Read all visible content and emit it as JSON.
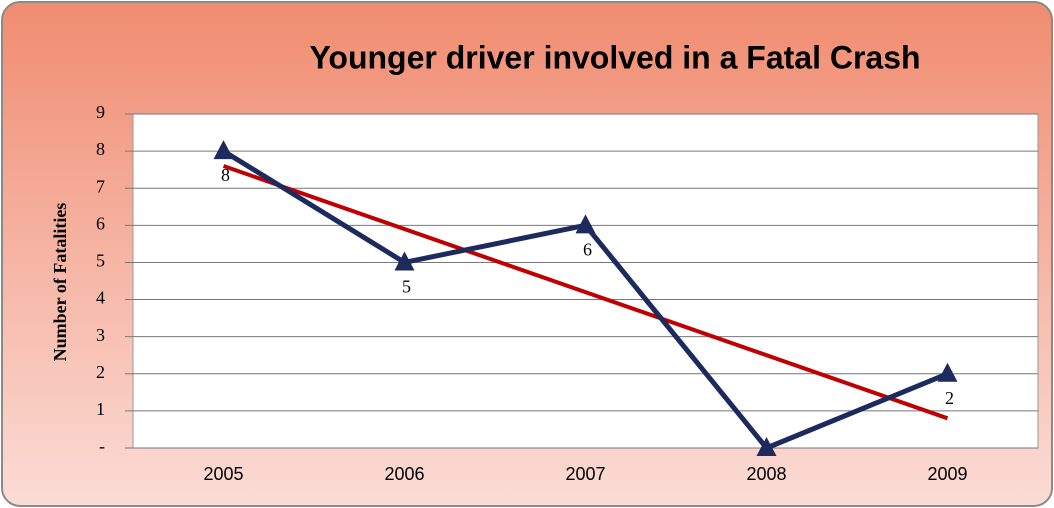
{
  "chart_data": {
    "type": "line",
    "title": "Younger driver involved in a Fatal Crash",
    "y_label": "Number of Fatalities",
    "categories": [
      "2005",
      "2006",
      "2007",
      "2008",
      "2009"
    ],
    "series": [
      {
        "name": "Fatalities",
        "color": "#1c2a5e",
        "values": [
          8,
          5,
          6,
          0,
          2
        ],
        "value_labels": [
          "8",
          "5",
          "6",
          null,
          "2"
        ]
      }
    ],
    "trendline": {
      "type": "linear",
      "color": "#c00000"
    },
    "ylim": [
      0,
      9
    ],
    "yticks": [
      {
        "value": 0,
        "label": "-"
      },
      1,
      2,
      3,
      4,
      5,
      6,
      7,
      8,
      9
    ],
    "grid": true
  }
}
